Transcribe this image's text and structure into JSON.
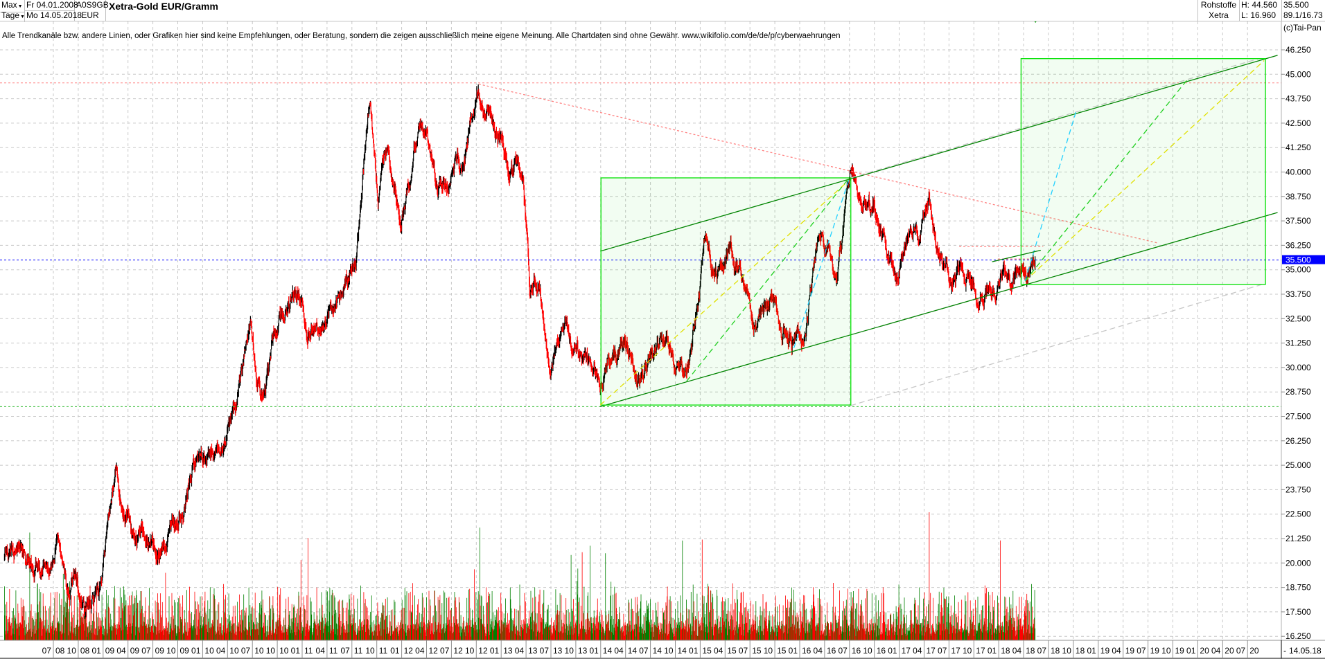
{
  "header": {
    "range_select": "Max",
    "interval_select": "Tage",
    "date_from": "Fr 04.01.2008",
    "date_to": "Mo 14.05.2018",
    "isin": "A0S9GB",
    "currency": "EUR",
    "title": "Xetra-Gold EUR/Gramm",
    "category": "Rohstoffe",
    "exchange": "Xetra",
    "high": "H: 44.560",
    "low": "L: 16.960",
    "last": "35.500",
    "cursor": "89.1/16.73"
  },
  "disclaimer": "Alle Trendkanäle bzw. andere Linien, oder Grafiken hier sind keine Empfehlungen, oder Beratung, sondern die zeigen ausschließlich meine eigene Meinung. Alle Chartdaten sind ohne Gewähr.  www.wikifolio.com/de/de/p/cyberwaehrungen",
  "copyright": "(c)Tai-Pan",
  "chart_data": {
    "type": "line",
    "style": "daily OHLC bars (black up / red down) with volume histogram (green/red)",
    "ylim": [
      16.25,
      46.25
    ],
    "y_ticks": [
      "46.250",
      "45.000",
      "43.750",
      "42.500",
      "41.250",
      "40.000",
      "38.750",
      "37.500",
      "36.250",
      "35.000",
      "33.750",
      "32.500",
      "31.250",
      "30.000",
      "28.750",
      "27.500",
      "26.250",
      "25.000",
      "23.750",
      "22.500",
      "21.250",
      "20.000",
      "18.750",
      "17.500",
      "16.250"
    ],
    "x_ticks": [
      "07 08",
      "10 08",
      "01 09",
      "04 09",
      "07 09",
      "10 09",
      "01 10",
      "04 10",
      "07 10",
      "10 10",
      "01 11",
      "04 11",
      "07 11",
      "10 11",
      "01 12",
      "04 12",
      "07 12",
      "10 12",
      "01 13",
      "04 13",
      "07 13",
      "10 13",
      "01 14",
      "04 14",
      "07 14",
      "10 14",
      "01 15",
      "04 15",
      "07 15",
      "10 15",
      "01 16",
      "04 16",
      "07 16",
      "10 16",
      "01 17",
      "04 17",
      "07 17",
      "10 17",
      "01 18",
      "04 18",
      "07 18",
      "10 18",
      "01 19",
      "04 19",
      "07 19",
      "10 19",
      "01 20",
      "04 20",
      "07 20"
    ],
    "x_end_label": "-",
    "x_cursor_label": "14.05.18",
    "current_price_label": "35.500",
    "current_price": 35.5,
    "grid": true,
    "price_series": [
      [
        "2008-01-04",
        20.3
      ],
      [
        "2008-03-15",
        21.0
      ],
      [
        "2008-05-15",
        19.5
      ],
      [
        "2008-07-15",
        20.5
      ],
      [
        "2008-08-20",
        18.5
      ],
      [
        "2008-09-20",
        19.5
      ],
      [
        "2008-10-24",
        17.2
      ],
      [
        "2008-11-20",
        18.5
      ],
      [
        "2008-12-20",
        19.0
      ],
      [
        "2009-02-20",
        25.0
      ],
      [
        "2009-03-15",
        23.0
      ],
      [
        "2009-04-20",
        21.5
      ],
      [
        "2009-06-15",
        21.5
      ],
      [
        "2009-07-15",
        21.2
      ],
      [
        "2009-09-15",
        22.0
      ],
      [
        "2009-10-15",
        22.5
      ],
      [
        "2009-12-05",
        25.0
      ],
      [
        "2010-02-15",
        25.5
      ],
      [
        "2010-05-10",
        28.0
      ],
      [
        "2010-06-25",
        32.8
      ],
      [
        "2010-07-20",
        29.5
      ],
      [
        "2010-08-05",
        28.7
      ],
      [
        "2010-09-20",
        31.5
      ],
      [
        "2010-11-15",
        33.0
      ],
      [
        "2010-12-15",
        34.0
      ],
      [
        "2011-01-20",
        32.0
      ],
      [
        "2011-03-15",
        32.5
      ],
      [
        "2011-05-15",
        33.5
      ],
      [
        "2011-07-15",
        35.0
      ],
      [
        "2011-08-15",
        40.5
      ],
      [
        "2011-09-05",
        43.5
      ],
      [
        "2011-10-05",
        39.0
      ],
      [
        "2011-11-10",
        41.5
      ],
      [
        "2011-12-28",
        38.0
      ],
      [
        "2012-02-20",
        41.5
      ],
      [
        "2012-03-10",
        42.5
      ],
      [
        "2012-05-15",
        39.0
      ],
      [
        "2012-06-15",
        40.0
      ],
      [
        "2012-07-15",
        41.0
      ],
      [
        "2012-08-15",
        40.0
      ],
      [
        "2012-10-05",
        44.5
      ],
      [
        "2012-11-15",
        43.5
      ],
      [
        "2013-01-15",
        41.0
      ],
      [
        "2013-02-15",
        40.0
      ],
      [
        "2013-03-20",
        40.5
      ],
      [
        "2013-04-16",
        33.5
      ],
      [
        "2013-05-15",
        34.5
      ],
      [
        "2013-06-28",
        30.0
      ],
      [
        "2013-08-25",
        33.0
      ],
      [
        "2013-09-20",
        31.5
      ],
      [
        "2013-11-15",
        30.0
      ],
      [
        "2013-12-30",
        28.3
      ],
      [
        "2014-01-25",
        30.0
      ],
      [
        "2014-03-15",
        31.0
      ],
      [
        "2014-05-25",
        29.5
      ],
      [
        "2014-07-15",
        31.0
      ],
      [
        "2014-09-15",
        30.5
      ],
      [
        "2014-11-05",
        29.5
      ],
      [
        "2015-01-22",
        37.0
      ],
      [
        "2015-02-15",
        35.5
      ],
      [
        "2015-03-15",
        34.5
      ],
      [
        "2015-04-15",
        36.0
      ],
      [
        "2015-06-15",
        34.0
      ],
      [
        "2015-07-25",
        32.5
      ],
      [
        "2015-09-15",
        33.0
      ],
      [
        "2015-11-15",
        32.0
      ],
      [
        "2015-12-15",
        31.4
      ],
      [
        "2016-01-20",
        32.0
      ],
      [
        "2016-03-10",
        37.0
      ],
      [
        "2016-05-15",
        35.0
      ],
      [
        "2016-07-06",
        39.5
      ],
      [
        "2016-08-15",
        38.5
      ],
      [
        "2016-10-05",
        38.0
      ],
      [
        "2016-11-15",
        36.0
      ],
      [
        "2016-12-20",
        35.0
      ],
      [
        "2017-02-20",
        37.0
      ],
      [
        "2017-03-15",
        36.0
      ],
      [
        "2017-04-20",
        38.5
      ],
      [
        "2017-05-15",
        36.0
      ],
      [
        "2017-06-15",
        35.5
      ],
      [
        "2017-07-15",
        34.5
      ],
      [
        "2017-09-10",
        35.0
      ],
      [
        "2017-10-15",
        34.2
      ],
      [
        "2017-12-15",
        34.0
      ],
      [
        "2018-01-20",
        34.6
      ],
      [
        "2018-02-15",
        34.3
      ],
      [
        "2018-03-20",
        34.5
      ],
      [
        "2018-04-10",
        34.4
      ],
      [
        "2018-05-14",
        35.3
      ]
    ],
    "drawings": [
      {
        "kind": "horizontal",
        "price": 44.56,
        "color": "#ff8080",
        "dash": "dotted"
      },
      {
        "kind": "horizontal",
        "price": 28.0,
        "color": "#40c040",
        "dash": "dotted"
      },
      {
        "kind": "horizontal",
        "price": 35.5,
        "color": "#0000ff",
        "dash": "dotted"
      },
      {
        "kind": "line",
        "from": [
          "2013-12-30",
          28.0
        ],
        "to": [
          "2020-10-20",
          37.93
        ],
        "color": "#008000"
      },
      {
        "kind": "line",
        "from": [
          "2013-12-30",
          35.95
        ],
        "to": [
          "2020-10-20",
          45.97
        ],
        "color": "#008000"
      },
      {
        "kind": "line",
        "from": [
          "2012-10-10",
          44.5
        ],
        "to": [
          "2019-08-06",
          36.37
        ],
        "color": "#ff8080",
        "dash": "dotted"
      },
      {
        "kind": "line",
        "from": [
          "2016-07-05",
          39.7
        ],
        "to": [
          "2020-08-12",
          45.8
        ],
        "color": "#c8c8c8",
        "dash": "dashed"
      },
      {
        "kind": "line",
        "from": [
          "2016-07-05",
          28.05
        ],
        "to": [
          "2020-09-06",
          34.3
        ],
        "color": "#c8c8c8",
        "dash": "dashed"
      },
      {
        "kind": "rect",
        "from": [
          "2014-01-02",
          39.7
        ],
        "to": [
          "2016-07-06",
          28.08
        ],
        "color": "#00e000"
      },
      {
        "kind": "rect",
        "from": [
          "2018-03-22",
          45.8
        ],
        "to": [
          "2020-09-06",
          34.25
        ],
        "color": "#00e000"
      },
      {
        "kind": "line",
        "from": [
          "2013-12-30",
          28.08
        ],
        "to": [
          "2016-07-01",
          39.6
        ],
        "color": "#e0e000",
        "dash": "dashed"
      },
      {
        "kind": "line",
        "from": [
          "2014-11-12",
          29.3
        ],
        "to": [
          "2016-06-28",
          39.66
        ],
        "color": "#20d020",
        "dash": "dashed"
      },
      {
        "kind": "line",
        "from": [
          "2015-12-10",
          31.0
        ],
        "to": [
          "2016-07-01",
          39.7
        ],
        "color": "#20d0ff",
        "dash": "dashed"
      },
      {
        "kind": "line",
        "from": [
          "2018-04-06",
          34.42
        ],
        "to": [
          "2020-09-01",
          45.7
        ],
        "color": "#e0e000",
        "dash": "dashed"
      },
      {
        "kind": "line",
        "from": [
          "2018-04-06",
          34.42
        ],
        "to": [
          "2019-11-22",
          44.7
        ],
        "color": "#20d020",
        "dash": "dashed"
      },
      {
        "kind": "line",
        "from": [
          "2018-04-06",
          34.42
        ],
        "to": [
          "2018-10-10",
          43.06
        ],
        "color": "#20d0ff",
        "dash": "dashed"
      },
      {
        "kind": "line",
        "from": [
          "2017-08-08",
          36.19
        ],
        "to": [
          "2018-06-12",
          36.19
        ],
        "color": "#ff8080",
        "dash": "dotted"
      },
      {
        "kind": "line",
        "from": [
          "2017-12-28",
          35.55
        ],
        "to": [
          "2018-04-20",
          35.55
        ],
        "color": "#ff8080",
        "dash": "dotted"
      },
      {
        "kind": "line",
        "from": [
          "2017-12-07",
          35.41
        ],
        "to": [
          "2018-06-03",
          36.0
        ],
        "color": "#008000"
      }
    ],
    "volume": {
      "shown": true,
      "up_color": "#008000",
      "down_color": "#ff0000"
    }
  }
}
